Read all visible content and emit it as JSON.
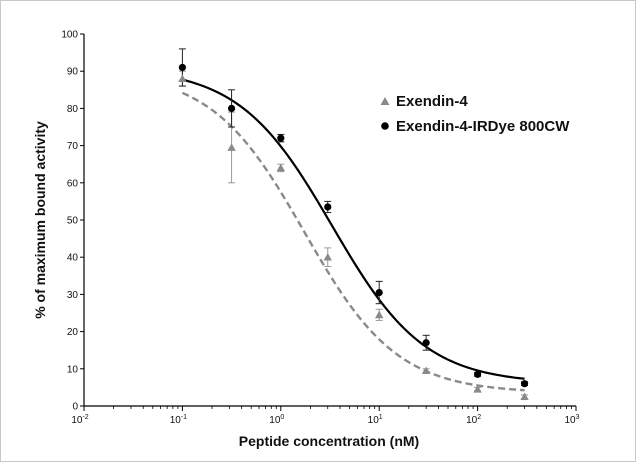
{
  "chart_data": {
    "type": "scatter",
    "xlabel": "Peptide concentration (nM)",
    "ylabel": "% of maximum bound activity",
    "xscale": "log",
    "xlim": [
      0.01,
      1000
    ],
    "ylim": [
      0,
      100
    ],
    "yticks": [
      0,
      10,
      20,
      30,
      40,
      50,
      60,
      70,
      80,
      90,
      100
    ],
    "xticks": [
      {
        "value": 0.01,
        "base": "10",
        "exp": "-2"
      },
      {
        "value": 0.1,
        "base": "10",
        "exp": "-1"
      },
      {
        "value": 1,
        "base": "10",
        "exp": "0"
      },
      {
        "value": 10,
        "base": "10",
        "exp": "1"
      },
      {
        "value": 100,
        "base": "10",
        "exp": "2"
      },
      {
        "value": 1000,
        "base": "10",
        "exp": "3"
      }
    ],
    "grid": false,
    "legend_position": "top-right",
    "series": [
      {
        "name": "Exendin-4",
        "marker": "triangle",
        "color": "#8a8a8a",
        "line_style": "dashed",
        "x": [
          0.1,
          0.316,
          1,
          3,
          10,
          30,
          100,
          300
        ],
        "y": [
          88,
          69.5,
          64,
          40,
          24.5,
          9.5,
          4.5,
          2.5
        ],
        "err": [
          2,
          9.5,
          1,
          2.5,
          1.5,
          0.5,
          0.5,
          0.5
        ],
        "fit": {
          "top": 90,
          "bottom": 3.5,
          "logIC50": 0.24,
          "hill": 0.92
        }
      },
      {
        "name": "Exendin-4-IRDye 800CW",
        "marker": "circle",
        "color": "#000000",
        "line_style": "solid",
        "x": [
          0.1,
          0.316,
          1,
          3,
          10,
          30,
          100,
          300
        ],
        "y": [
          91,
          80,
          72,
          53.5,
          30.5,
          17,
          8.5,
          6
        ],
        "err": [
          5,
          5,
          1,
          1.5,
          3,
          2,
          0.5,
          0.5
        ],
        "fit": {
          "top": 91,
          "bottom": 6,
          "logIC50": 0.52,
          "hill": 0.92
        }
      }
    ]
  }
}
